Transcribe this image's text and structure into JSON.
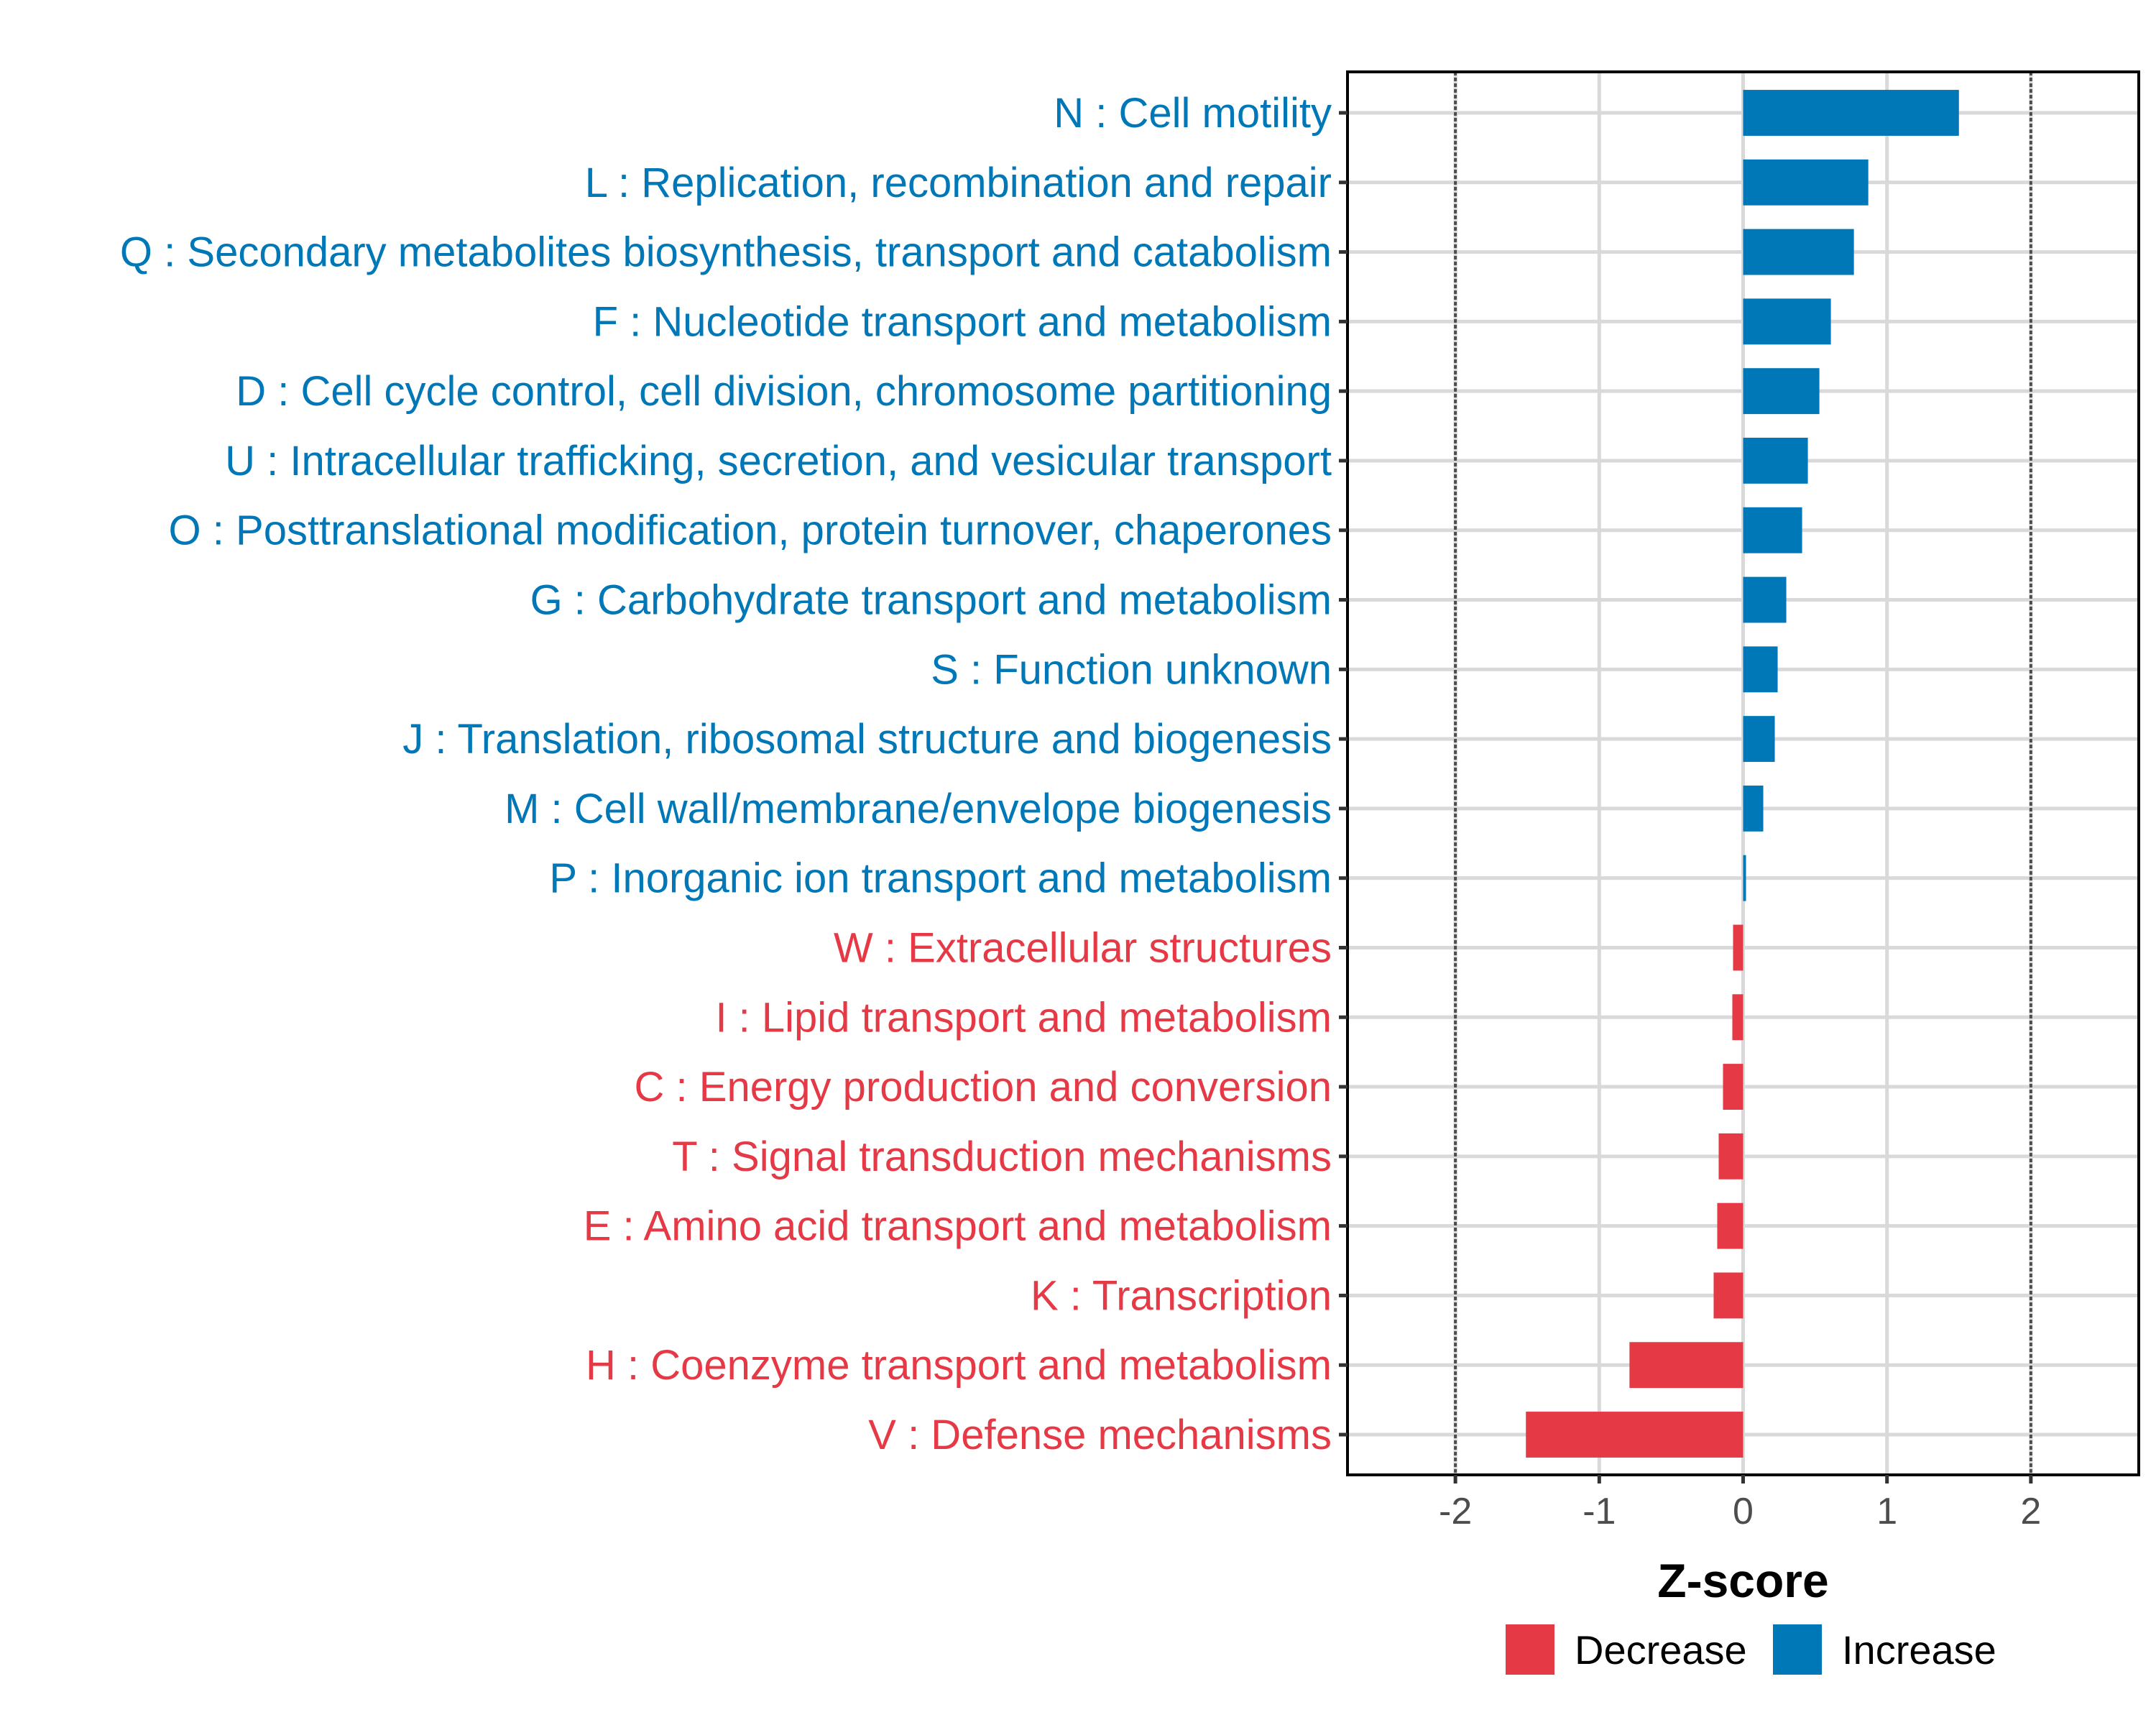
{
  "chart_data": {
    "type": "bar",
    "orientation": "horizontal",
    "title": "",
    "xlabel": "Z-score",
    "ylabel": "",
    "xlim": [
      -2.75,
      2.75
    ],
    "xticks": [
      -2,
      -1,
      0,
      1,
      2
    ],
    "xtick_labels": [
      "-2",
      "-1",
      "0",
      "1",
      "2"
    ],
    "reference_lines": [
      -2,
      2
    ],
    "grid": true,
    "categories": [
      "N : Cell motility",
      "L : Replication, recombination and repair",
      "Q : Secondary metabolites biosynthesis, transport and catabolism",
      "F : Nucleotide transport and metabolism",
      "D : Cell cycle control, cell division, chromosome partitioning",
      "U : Intracellular trafficking, secretion, and vesicular transport",
      "O : Posttranslational modification, protein turnover, chaperones",
      "G : Carbohydrate transport and metabolism",
      "S : Function unknown",
      "J : Translation, ribosomal structure and biogenesis",
      "M : Cell wall/membrane/envelope biogenesis",
      "P : Inorganic ion transport and metabolism",
      "W : Extracellular structures",
      "I : Lipid transport and metabolism",
      "C : Energy production and conversion",
      "T : Signal transduction mechanisms",
      "E : Amino acid transport and metabolism",
      "K : Transcription",
      "H : Coenzyme transport and metabolism",
      "V : Defense mechanisms"
    ],
    "values": [
      1.5,
      0.87,
      0.77,
      0.61,
      0.53,
      0.45,
      0.41,
      0.3,
      0.24,
      0.22,
      0.14,
      0.02,
      -0.07,
      -0.075,
      -0.14,
      -0.17,
      -0.18,
      -0.205,
      -0.79,
      -1.51
    ],
    "groups": [
      "Increase",
      "Increase",
      "Increase",
      "Increase",
      "Increase",
      "Increase",
      "Increase",
      "Increase",
      "Increase",
      "Increase",
      "Increase",
      "Increase",
      "Decrease",
      "Decrease",
      "Decrease",
      "Decrease",
      "Decrease",
      "Decrease",
      "Decrease",
      "Decrease"
    ],
    "legend": {
      "position": "bottom",
      "entries": [
        {
          "label": "Decrease",
          "color": "#E63946"
        },
        {
          "label": "Increase",
          "color": "#0077B6"
        }
      ]
    },
    "colors": {
      "Decrease": "#E63946",
      "Increase": "#0077B6"
    }
  }
}
